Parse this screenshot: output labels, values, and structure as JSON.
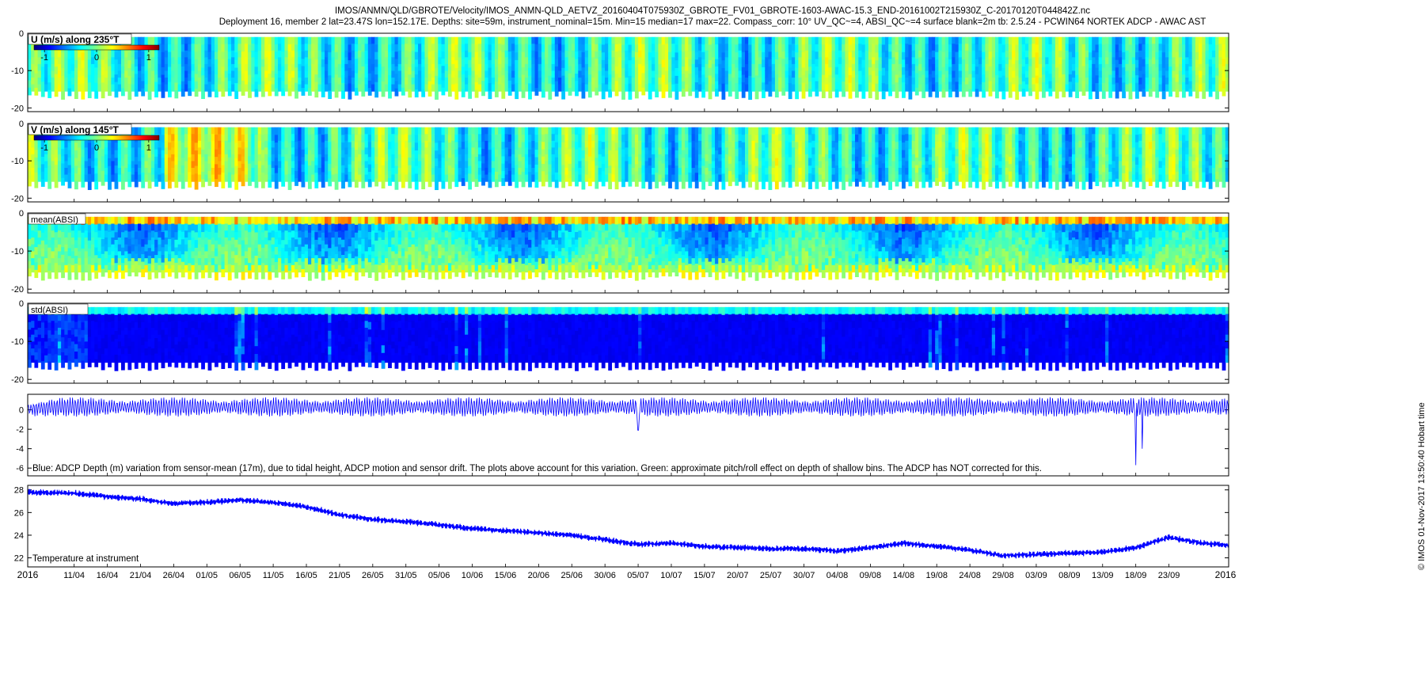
{
  "header": {
    "line1": "IMOS/ANMN/QLD/GBROTE/Velocity/IMOS_ANMN-QLD_AETVZ_20160404T075930Z_GBROTE_FV01_GBROTE-1603-AWAC-15.3_END-20161002T215930Z_C-20170120T044842Z.nc",
    "line2": "Deployment 16, member 2 lat=23.47S lon=152.17E. Depths: site=59m, instrument_nominal=15m. Min=15 median=17 max=22. Compass_corr: 10° UV_QC~=4, ABSI_QC~=4 surface blank=2m tb: 2.5.24 - PCWIN64 NORTEK ADCP - AWAC AST"
  },
  "side_note": "© IMOS 01-Nov-2017 13:50:40 Hobart time",
  "chart_data": [
    {
      "type": "heatmap",
      "title": "U (m/s) along 235°T",
      "yticks": [
        0,
        -10,
        -20
      ],
      "ylim": [
        -21,
        0
      ],
      "colorbar": {
        "colormap": "jet",
        "ticks": [
          "-1",
          "0",
          "1"
        ],
        "range": [
          -1.2,
          1.2
        ]
      },
      "field": "velocity",
      "value_range": [
        -0.3,
        0.5
      ]
    },
    {
      "type": "heatmap",
      "title": "V (m/s) along 145°T",
      "yticks": [
        0,
        -10,
        -20
      ],
      "ylim": [
        -21,
        0
      ],
      "colorbar": {
        "colormap": "jet",
        "ticks": [
          "-1",
          "0",
          "1"
        ],
        "range": [
          -1.2,
          1.2
        ]
      },
      "field": "velocity",
      "value_range": [
        -0.3,
        0.6
      ]
    },
    {
      "type": "heatmap",
      "title": "mean(ABSI)",
      "yticks": [
        0,
        -10,
        -20
      ],
      "ylim": [
        -21,
        0
      ],
      "colormap": "jet",
      "field": "mean_absi"
    },
    {
      "type": "heatmap",
      "title": "std(ABSI)",
      "yticks": [
        0,
        -10,
        -20
      ],
      "ylim": [
        -21,
        0
      ],
      "colormap": "jet",
      "field": "std_absi"
    },
    {
      "type": "line",
      "title": "",
      "annotation": "Blue: ADCP Depth (m) variation from sensor-mean (17m), due to tidal height, ADCP motion and sensor drift. The plots above account for this variation. Green: approximate pitch/roll effect on depth of shallow bins. The ADCP has NOT corrected for this.",
      "yticks": [
        0,
        -2,
        -4,
        -6
      ],
      "ylim": [
        -6.8,
        1.6
      ],
      "color": "#0000ff",
      "tidal_amplitude_m": 1.0,
      "dips": [
        {
          "date": "2016-09-18",
          "min": -5.7
        },
        {
          "date": "2016-09-19",
          "min": -4.0
        },
        {
          "date": "2016-07-05",
          "min": -2.1
        }
      ]
    },
    {
      "type": "line",
      "title": "",
      "annotation": "Temperature at instrument",
      "yticks": [
        22,
        24,
        26,
        28
      ],
      "ylim": [
        21.2,
        28.4
      ],
      "color": "#0000ff",
      "series": [
        {
          "x": [
            "2016-04-04",
            "2016-04-11",
            "2016-04-16",
            "2016-04-21",
            "2016-04-26",
            "2016-05-01",
            "2016-05-06",
            "2016-05-11",
            "2016-05-16",
            "2016-05-21",
            "2016-05-26",
            "2016-05-31",
            "2016-06-05",
            "2016-06-10",
            "2016-06-15",
            "2016-06-20",
            "2016-06-25",
            "2016-06-30",
            "2016-07-05",
            "2016-07-10",
            "2016-07-15",
            "2016-07-20",
            "2016-07-25",
            "2016-07-30",
            "2016-08-04",
            "2016-08-09",
            "2016-08-14",
            "2016-08-19",
            "2016-08-24",
            "2016-08-29",
            "2016-09-03",
            "2016-09-08",
            "2016-09-13",
            "2016-09-18",
            "2016-09-23",
            "2016-09-28",
            "2016-10-02"
          ],
          "values": [
            27.8,
            27.7,
            27.4,
            27.2,
            26.8,
            26.9,
            27.1,
            26.9,
            26.5,
            25.8,
            25.4,
            25.2,
            24.9,
            24.6,
            24.4,
            24.2,
            24.0,
            23.6,
            23.2,
            23.3,
            23.0,
            22.9,
            22.8,
            22.8,
            22.6,
            22.9,
            23.3,
            23.0,
            22.7,
            22.2,
            22.3,
            22.4,
            22.5,
            22.9,
            23.8,
            23.3,
            23.1
          ]
        }
      ]
    }
  ],
  "xaxis": {
    "year_left": "2016",
    "year_right": "2016",
    "start": "2016-04-04",
    "end": "2016-10-02",
    "ticks": [
      "2016-04-11",
      "2016-04-16",
      "2016-04-21",
      "2016-04-26",
      "2016-05-01",
      "2016-05-06",
      "2016-05-11",
      "2016-05-16",
      "2016-05-21",
      "2016-05-26",
      "2016-05-31",
      "2016-06-05",
      "2016-06-10",
      "2016-06-15",
      "2016-06-20",
      "2016-06-25",
      "2016-06-30",
      "2016-07-05",
      "2016-07-10",
      "2016-07-15",
      "2016-07-20",
      "2016-07-25",
      "2016-07-30",
      "2016-08-04",
      "2016-08-09",
      "2016-08-14",
      "2016-08-19",
      "2016-08-24",
      "2016-08-29",
      "2016-09-03",
      "2016-09-08",
      "2016-09-13",
      "2016-09-18",
      "2016-09-23"
    ],
    "tick_labels": [
      "11/04",
      "16/04",
      "21/04",
      "26/04",
      "01/05",
      "06/05",
      "11/05",
      "16/05",
      "21/05",
      "26/05",
      "31/05",
      "05/06",
      "10/06",
      "15/06",
      "20/06",
      "25/06",
      "30/06",
      "05/07",
      "10/07",
      "15/07",
      "20/07",
      "25/07",
      "30/07",
      "04/08",
      "09/08",
      "14/08",
      "19/08",
      "24/08",
      "29/08",
      "03/09",
      "08/09",
      "13/09",
      "18/09",
      "23/09"
    ]
  }
}
